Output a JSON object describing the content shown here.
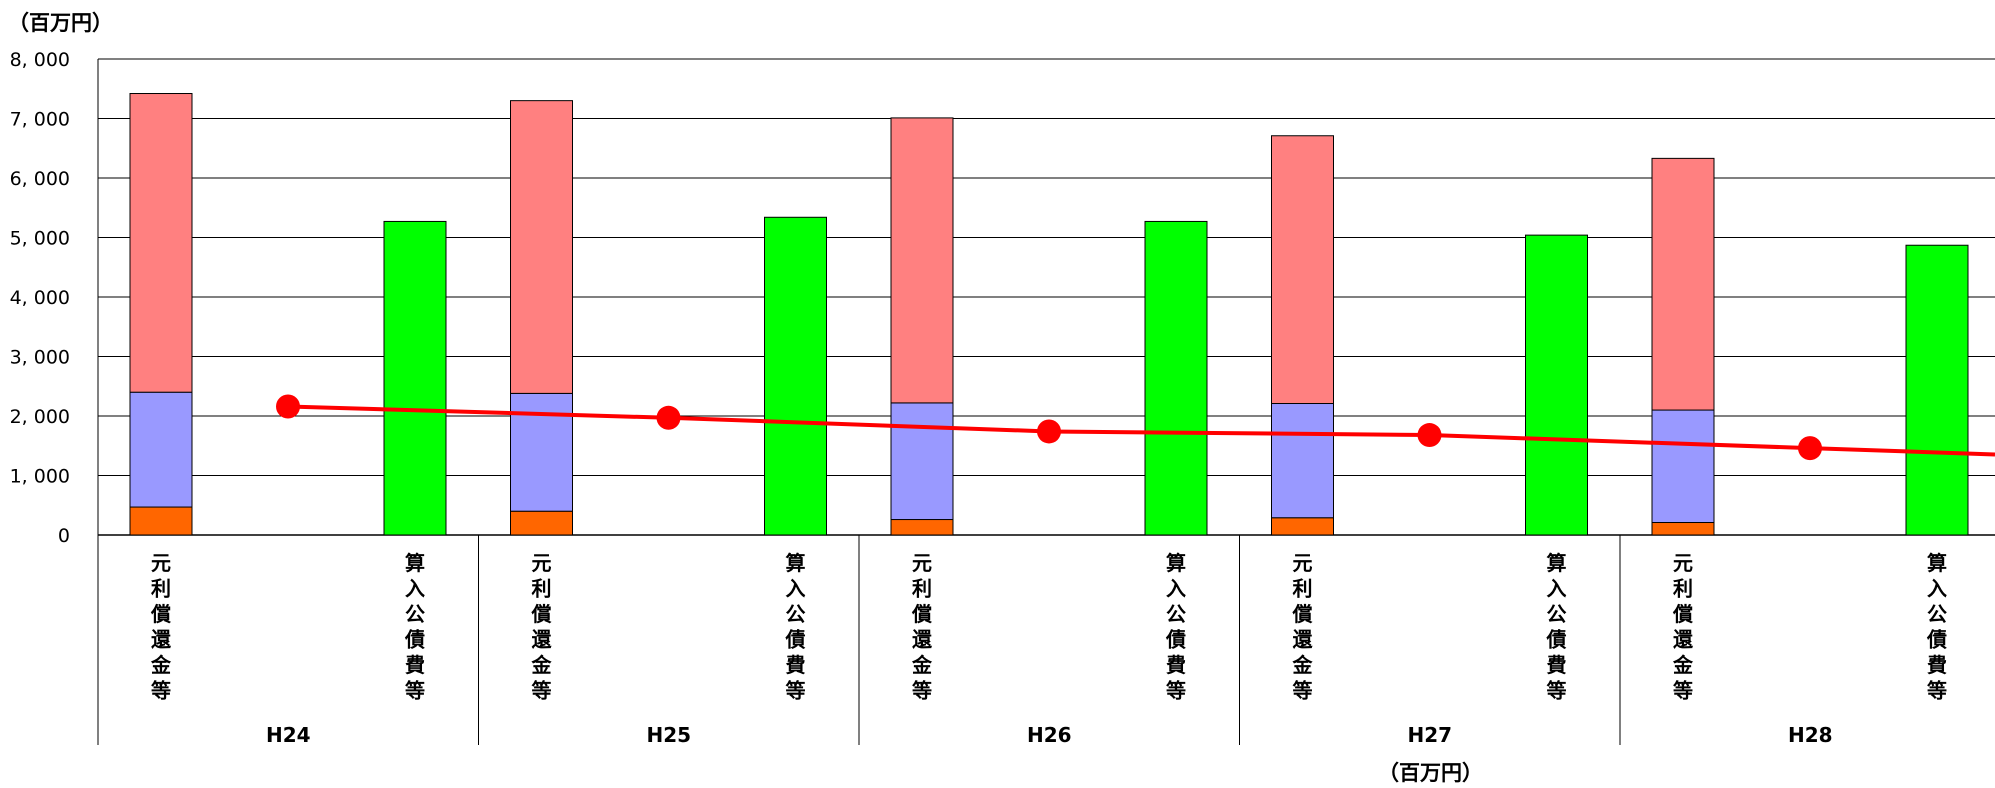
{
  "chart_data": {
    "type": "bar",
    "unit_label_top": "（百万円）",
    "unit_label_bottom": "（百万円）",
    "ylim": [
      0,
      8000
    ],
    "yticks": [
      "0",
      "1, 000",
      "2, 000",
      "3, 000",
      "4, 000",
      "5, 000",
      "6, 000",
      "7, 000",
      "8, 000"
    ],
    "grid": true,
    "groups": [
      "H24",
      "H25",
      "H26",
      "H27",
      "H28"
    ],
    "bar_labels": [
      "元利償還金等",
      "算入公債費等"
    ],
    "stacked_bar": {
      "label": "元利償還金等",
      "segments": [
        {
          "color": "#ff6600",
          "values": [
            470,
            400,
            260,
            290,
            210
          ]
        },
        {
          "color": "#9999ff",
          "values": [
            1930,
            1980,
            1960,
            1920,
            1890
          ]
        },
        {
          "color": "#ff8080",
          "values": [
            5020,
            4920,
            4790,
            4500,
            4230
          ]
        }
      ]
    },
    "single_bar": {
      "label": "算入公債費等",
      "color": "#00ff00",
      "values": [
        5270,
        5340,
        5270,
        5040,
        4870
      ]
    },
    "line": {
      "color": "#ff0000",
      "values": [
        2160,
        1970,
        1740,
        1680,
        1460
      ]
    }
  }
}
